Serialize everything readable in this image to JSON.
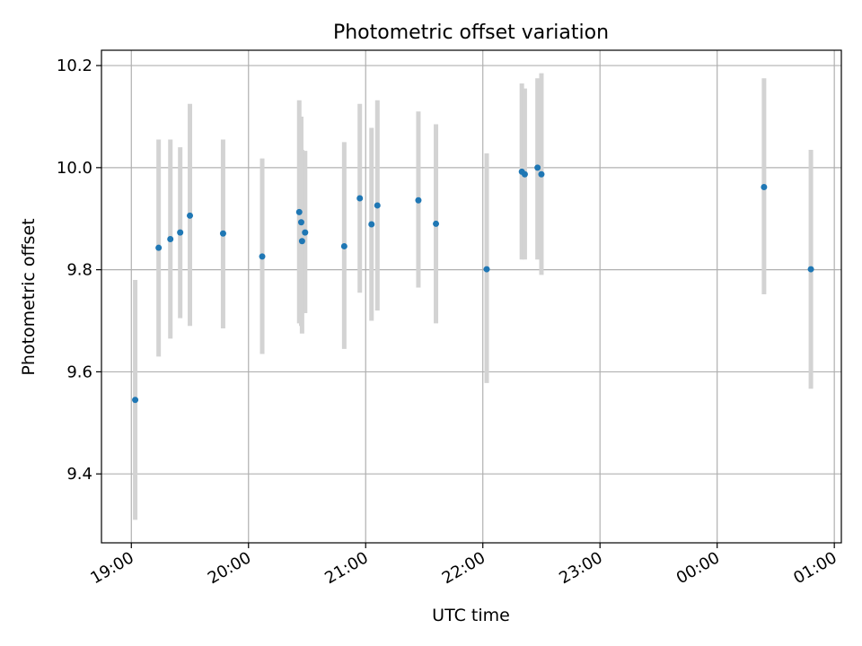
{
  "chart_data": {
    "type": "scatter",
    "title": "Photometric offset variation",
    "xlabel": "UTC time",
    "ylabel": "Photometric offset",
    "grid": true,
    "xlim_hours": [
      18.745,
      25.06
    ],
    "ylim": [
      9.265,
      10.23
    ],
    "x_ticks": [
      {
        "value": 19.0,
        "label": "19:00"
      },
      {
        "value": 20.0,
        "label": "20:00"
      },
      {
        "value": 21.0,
        "label": "21:00"
      },
      {
        "value": 22.0,
        "label": "22:00"
      },
      {
        "value": 23.0,
        "label": "23:00"
      },
      {
        "value": 24.0,
        "label": "00:00"
      },
      {
        "value": 25.0,
        "label": "01:00"
      }
    ],
    "y_ticks": [
      {
        "value": 9.4,
        "label": "9.4"
      },
      {
        "value": 9.6,
        "label": "9.6"
      },
      {
        "value": 9.8,
        "label": "9.8"
      },
      {
        "value": 10.0,
        "label": "10.0"
      },
      {
        "value": 10.2,
        "label": "10.2"
      }
    ],
    "point_color": "#1f77b4",
    "errorbar_color": "#d3d3d3",
    "points": [
      {
        "time": "19:02",
        "x": 19.033,
        "y": 9.545,
        "lo": 9.31,
        "hi": 9.78
      },
      {
        "time": "19:14",
        "x": 19.233,
        "y": 9.843,
        "lo": 9.63,
        "hi": 10.055
      },
      {
        "time": "19:20",
        "x": 19.333,
        "y": 9.86,
        "lo": 9.665,
        "hi": 10.055
      },
      {
        "time": "19:25",
        "x": 19.417,
        "y": 9.873,
        "lo": 9.705,
        "hi": 10.04
      },
      {
        "time": "19:30",
        "x": 19.5,
        "y": 9.906,
        "lo": 9.69,
        "hi": 10.125
      },
      {
        "time": "19:47",
        "x": 19.783,
        "y": 9.871,
        "lo": 9.685,
        "hi": 10.055
      },
      {
        "time": "20:07",
        "x": 20.117,
        "y": 9.826,
        "lo": 9.635,
        "hi": 10.018
      },
      {
        "time": "20:26",
        "x": 20.433,
        "y": 9.913,
        "lo": 9.695,
        "hi": 10.132
      },
      {
        "time": "20:27",
        "x": 20.45,
        "y": 9.893,
        "lo": 9.69,
        "hi": 10.1
      },
      {
        "time": "20:27",
        "x": 20.457,
        "y": 9.856,
        "lo": 9.675,
        "hi": 10.035
      },
      {
        "time": "20:29",
        "x": 20.483,
        "y": 9.873,
        "lo": 9.715,
        "hi": 10.033
      },
      {
        "time": "20:49",
        "x": 20.817,
        "y": 9.846,
        "lo": 9.645,
        "hi": 10.05
      },
      {
        "time": "20:57",
        "x": 20.95,
        "y": 9.94,
        "lo": 9.755,
        "hi": 10.125
      },
      {
        "time": "21:03",
        "x": 21.05,
        "y": 9.889,
        "lo": 9.7,
        "hi": 10.078
      },
      {
        "time": "21:06",
        "x": 21.1,
        "y": 9.926,
        "lo": 9.72,
        "hi": 10.132
      },
      {
        "time": "21:27",
        "x": 21.45,
        "y": 9.936,
        "lo": 9.765,
        "hi": 10.11
      },
      {
        "time": "21:36",
        "x": 21.6,
        "y": 9.89,
        "lo": 9.695,
        "hi": 10.085
      },
      {
        "time": "22:02",
        "x": 22.033,
        "y": 9.801,
        "lo": 9.578,
        "hi": 10.028
      },
      {
        "time": "22:20",
        "x": 22.333,
        "y": 9.992,
        "lo": 9.82,
        "hi": 10.165
      },
      {
        "time": "22:21",
        "x": 22.358,
        "y": 9.987,
        "lo": 9.82,
        "hi": 10.155
      },
      {
        "time": "22:28",
        "x": 22.467,
        "y": 10.0,
        "lo": 9.82,
        "hi": 10.175
      },
      {
        "time": "22:30",
        "x": 22.5,
        "y": 9.987,
        "lo": 9.79,
        "hi": 10.185
      },
      {
        "time": "00:24",
        "x": 24.4,
        "y": 9.962,
        "lo": 9.752,
        "hi": 10.175
      },
      {
        "time": "00:48",
        "x": 24.8,
        "y": 9.801,
        "lo": 9.567,
        "hi": 10.035
      }
    ]
  }
}
